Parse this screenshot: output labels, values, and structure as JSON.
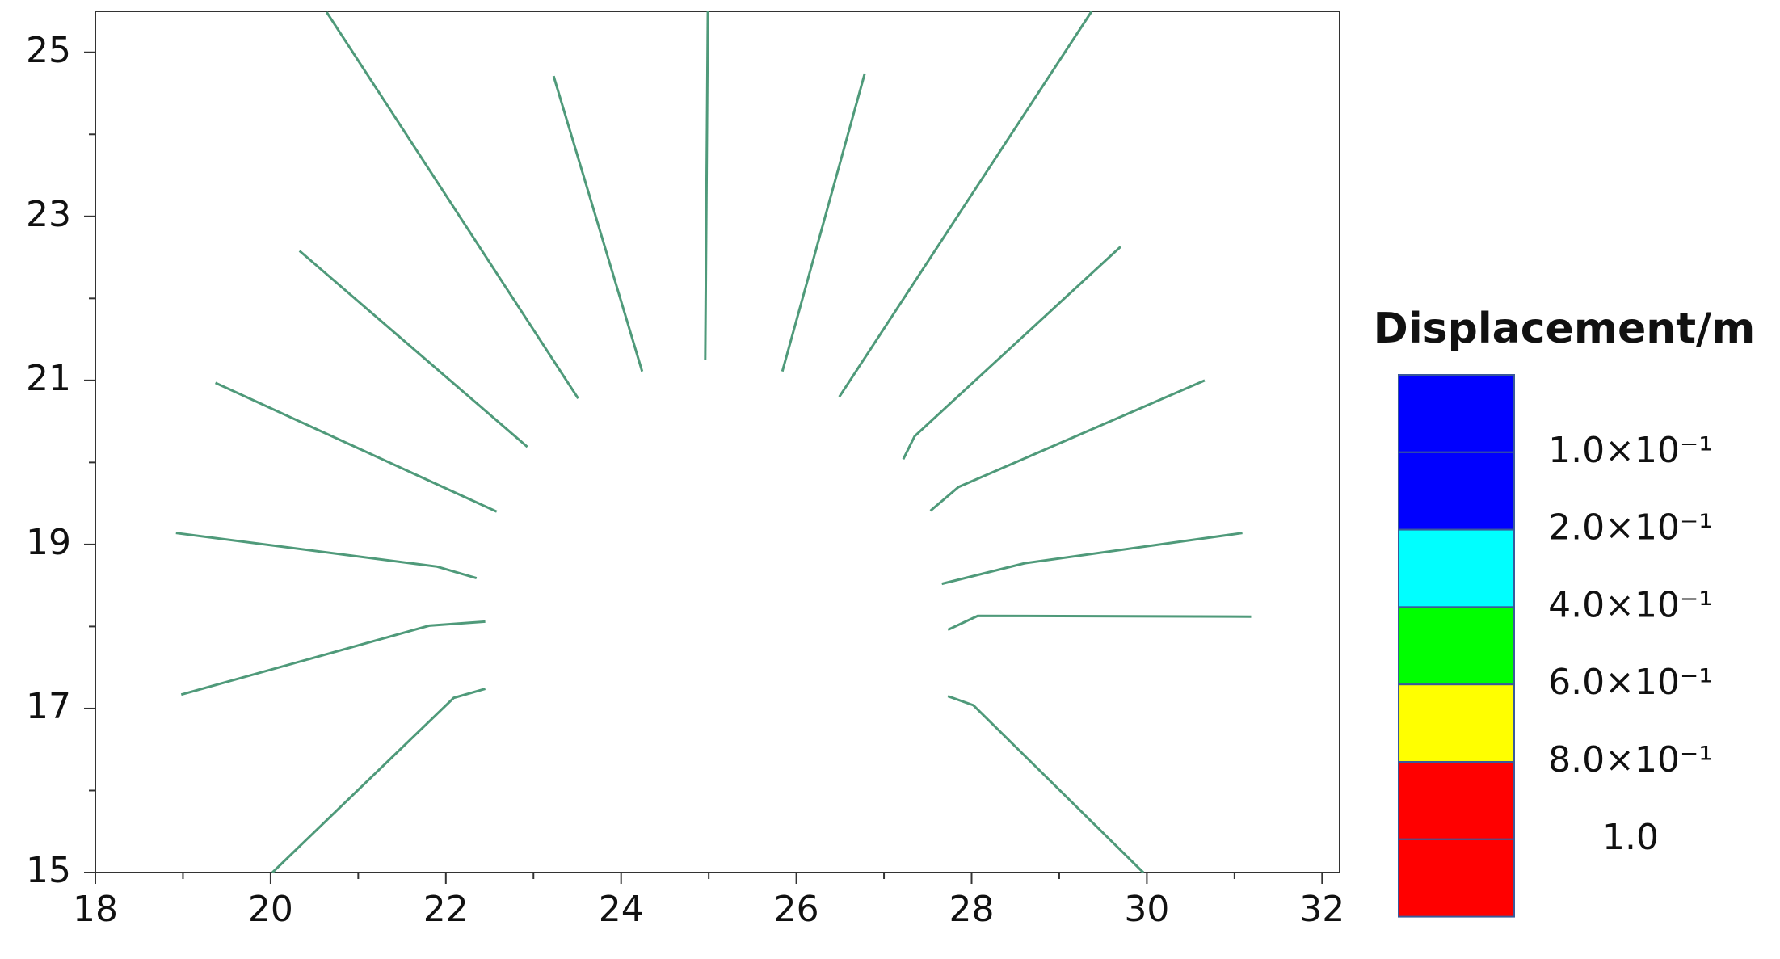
{
  "chart_data": {
    "type": "line",
    "xlim": [
      18,
      32.2
    ],
    "ylim": [
      15,
      25.5
    ],
    "xticks": [
      18,
      20,
      22,
      24,
      26,
      28,
      30,
      32
    ],
    "yticks": [
      15,
      17,
      19,
      21,
      23,
      25
    ],
    "series": [
      {
        "color": "#4f9a7a",
        "x": [
          23.51,
          20.64
        ],
        "y": [
          20.78,
          25.49
        ]
      },
      {
        "color": "#4f9a7a",
        "x": [
          24.24,
          23.23
        ],
        "y": [
          21.11,
          24.71
        ]
      },
      {
        "color": "#4f9a7a",
        "x": [
          22.93,
          20.33
        ],
        "y": [
          20.19,
          22.58
        ]
      },
      {
        "color": "#4f9a7a",
        "x": [
          22.58,
          19.37
        ],
        "y": [
          19.4,
          20.97
        ]
      },
      {
        "color": "#4f9a7a",
        "x": [
          22.35,
          21.9,
          18.92
        ],
        "y": [
          18.59,
          18.73,
          19.14
        ]
      },
      {
        "color": "#4f9a7a",
        "x": [
          22.45,
          21.81,
          18.98
        ],
        "y": [
          18.06,
          18.01,
          17.17
        ]
      },
      {
        "color": "#4f9a7a",
        "x": [
          22.45,
          22.09,
          20.02
        ],
        "y": [
          17.24,
          17.13,
          15.0
        ]
      },
      {
        "color": "#4f9a7a",
        "x": [
          24.96,
          24.99
        ],
        "y": [
          21.25,
          25.5
        ]
      },
      {
        "color": "#4f9a7a",
        "x": [
          25.84,
          26.78
        ],
        "y": [
          21.11,
          24.74
        ]
      },
      {
        "color": "#4f9a7a",
        "x": [
          26.49,
          29.37
        ],
        "y": [
          20.8,
          25.5
        ]
      },
      {
        "color": "#4f9a7a",
        "x": [
          27.22,
          27.35,
          29.7
        ],
        "y": [
          20.04,
          20.32,
          22.63
        ]
      },
      {
        "color": "#4f9a7a",
        "x": [
          27.53,
          27.85,
          30.66
        ],
        "y": [
          19.41,
          19.7,
          21.0
        ]
      },
      {
        "color": "#4f9a7a",
        "x": [
          27.66,
          28.6,
          31.09
        ],
        "y": [
          18.52,
          18.77,
          19.14
        ]
      },
      {
        "color": "#4f9a7a",
        "x": [
          27.73,
          28.07,
          31.19
        ],
        "y": [
          17.96,
          18.13,
          18.12
        ]
      },
      {
        "color": "#4f9a7a",
        "x": [
          27.73,
          28.02,
          29.96
        ],
        "y": [
          17.15,
          17.04,
          15.0
        ]
      }
    ],
    "legend": {
      "title": "Displacement/m",
      "colors": [
        "#0000ff",
        "#0000ff",
        "#00ffff",
        "#00ff00",
        "#ffff00",
        "#ff0000",
        "#ff0000"
      ],
      "labels": [
        "1.0×10⁻¹",
        "2.0×10⁻¹",
        "4.0×10⁻¹",
        "6.0×10⁻¹",
        "8.0×10⁻¹",
        "1.0"
      ]
    }
  }
}
